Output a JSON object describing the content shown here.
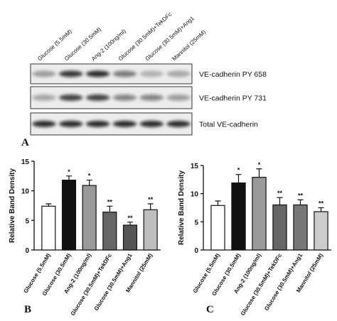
{
  "blot": {
    "label": "A",
    "lanes": [
      "Glucose (5.5mM)",
      "Glucose (30.5mM)",
      "Ang-2 (100ng/ml)",
      "Glucose (30.5mM)+TekDFc",
      "Glucose (30.5mM)+Ang1",
      "Mannitol (25mM)"
    ],
    "rows": [
      "VE-cadherin PY 658",
      "VE-cadherin PY 731",
      "Total VE-cadherin"
    ]
  },
  "chart_data": [
    {
      "type": "bar",
      "label": "B",
      "y_label": "Relative Band Density",
      "categories": [
        "Glucose (5.5mM)",
        "Glucose (30.5mM)",
        "Ang-2 (100ng/ml)",
        "Glucose (30.5mM)+TekDFc",
        "Glucose (30.5mM)+Ang1",
        "Mannitol (25mM)"
      ],
      "values": [
        7.4,
        11.8,
        10.9,
        6.4,
        4.2,
        6.8
      ],
      "errors": [
        0.4,
        0.7,
        0.9,
        1.0,
        0.5,
        1.0
      ],
      "annotations": [
        null,
        "*",
        "*",
        "**",
        "**",
        "**"
      ],
      "colors": [
        "#ffffff",
        "#111111",
        "#9a9a9a",
        "#666666",
        "#555555",
        "#bdbdbd"
      ],
      "ylim": [
        0,
        15
      ],
      "yticks": [
        0,
        5,
        10,
        15
      ]
    },
    {
      "type": "bar",
      "label": "C",
      "y_label": "Relative Band Density",
      "categories": [
        "Glucose (5.5mM)",
        "Glucose (30.5mM)",
        "Ang-2 (100ng/ml)",
        "Glucose (30.5mM)+TekDFc",
        "Glucose (30.5mM)+Ang1",
        "Mannitol (25mM)"
      ],
      "values": [
        7.9,
        11.9,
        12.9,
        8.0,
        8.0,
        6.8
      ],
      "errors": [
        0.8,
        1.5,
        1.5,
        1.3,
        0.9,
        0.7
      ],
      "annotations": [
        null,
        "*",
        "*",
        "**",
        "**",
        "**"
      ],
      "colors": [
        "#ffffff",
        "#111111",
        "#9a9a9a",
        "#666666",
        "#777777",
        "#cccccc"
      ],
      "ylim": [
        0,
        15
      ],
      "yticks": [
        0,
        5,
        10,
        15
      ]
    }
  ]
}
